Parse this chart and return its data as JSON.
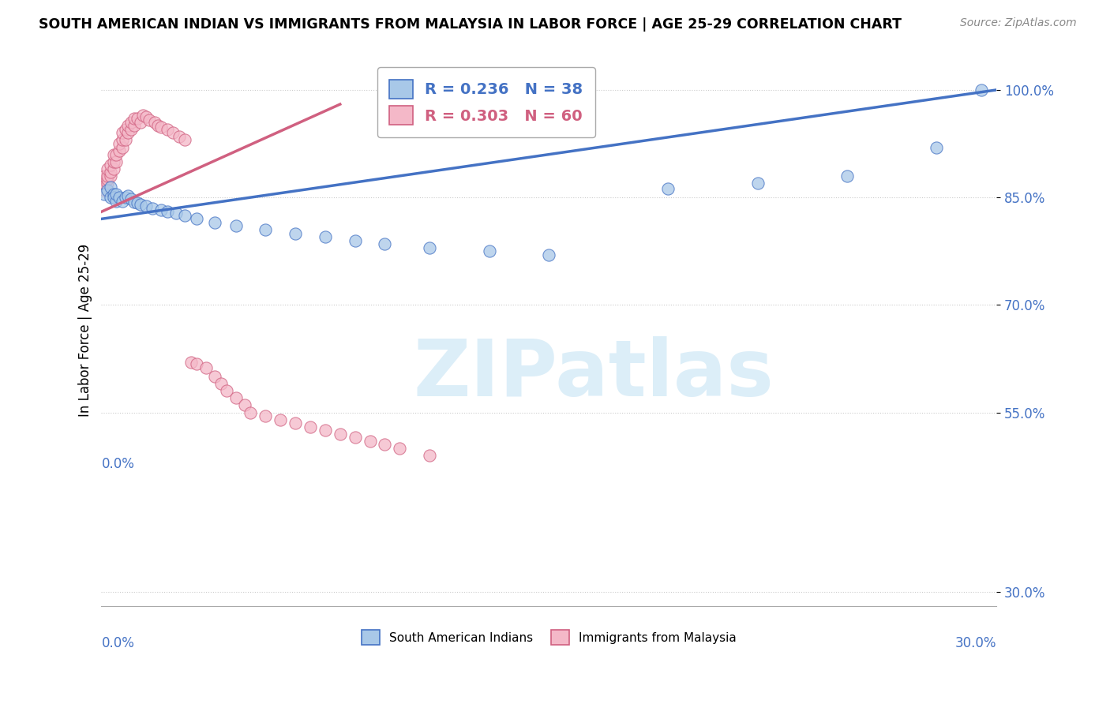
{
  "title": "SOUTH AMERICAN INDIAN VS IMMIGRANTS FROM MALAYSIA IN LABOR FORCE | AGE 25-29 CORRELATION CHART",
  "source": "Source: ZipAtlas.com",
  "ylabel": "In Labor Force | Age 25-29",
  "ytick_labels": [
    "100.0%",
    "85.0%",
    "70.0%",
    "55.0%",
    "30.0%"
  ],
  "ytick_values": [
    1.0,
    0.85,
    0.7,
    0.55,
    0.3
  ],
  "xlim": [
    0.0,
    0.3
  ],
  "ylim": [
    0.28,
    1.05
  ],
  "blue_R": 0.236,
  "blue_N": 38,
  "pink_R": 0.303,
  "pink_N": 60,
  "blue_color": "#a8c8e8",
  "blue_edge_color": "#4472c4",
  "pink_color": "#f4b8c8",
  "pink_edge_color": "#d06080",
  "blue_line_color": "#4472c4",
  "pink_line_color": "#d06080",
  "watermark_color": "#dceef8",
  "blue_scatter_x": [
    0.001,
    0.002,
    0.003,
    0.003,
    0.004,
    0.004,
    0.005,
    0.005,
    0.006,
    0.007,
    0.008,
    0.009,
    0.01,
    0.011,
    0.012,
    0.013,
    0.015,
    0.017,
    0.02,
    0.022,
    0.025,
    0.028,
    0.032,
    0.038,
    0.045,
    0.055,
    0.065,
    0.075,
    0.085,
    0.095,
    0.11,
    0.13,
    0.15,
    0.19,
    0.22,
    0.25,
    0.28,
    0.295
  ],
  "blue_scatter_y": [
    0.855,
    0.86,
    0.85,
    0.865,
    0.855,
    0.85,
    0.845,
    0.855,
    0.85,
    0.845,
    0.85,
    0.852,
    0.848,
    0.844,
    0.842,
    0.84,
    0.838,
    0.835,
    0.832,
    0.83,
    0.828,
    0.825,
    0.82,
    0.815,
    0.81,
    0.805,
    0.8,
    0.795,
    0.79,
    0.785,
    0.78,
    0.775,
    0.77,
    0.862,
    0.87,
    0.88,
    0.92,
    1.0
  ],
  "pink_scatter_x": [
    0.001,
    0.001,
    0.001,
    0.002,
    0.002,
    0.002,
    0.002,
    0.003,
    0.003,
    0.003,
    0.004,
    0.004,
    0.004,
    0.005,
    0.005,
    0.006,
    0.006,
    0.007,
    0.007,
    0.007,
    0.008,
    0.008,
    0.009,
    0.009,
    0.01,
    0.01,
    0.011,
    0.011,
    0.012,
    0.013,
    0.014,
    0.015,
    0.016,
    0.018,
    0.019,
    0.02,
    0.022,
    0.024,
    0.026,
    0.028,
    0.03,
    0.032,
    0.035,
    0.038,
    0.04,
    0.042,
    0.045,
    0.048,
    0.05,
    0.055,
    0.06,
    0.065,
    0.07,
    0.075,
    0.08,
    0.085,
    0.09,
    0.095,
    0.1,
    0.11
  ],
  "pink_scatter_y": [
    0.86,
    0.87,
    0.88,
    0.87,
    0.875,
    0.88,
    0.89,
    0.88,
    0.885,
    0.895,
    0.89,
    0.9,
    0.91,
    0.9,
    0.91,
    0.915,
    0.925,
    0.92,
    0.93,
    0.94,
    0.93,
    0.945,
    0.94,
    0.95,
    0.945,
    0.955,
    0.95,
    0.96,
    0.96,
    0.955,
    0.965,
    0.962,
    0.958,
    0.955,
    0.95,
    0.948,
    0.945,
    0.94,
    0.935,
    0.93,
    0.62,
    0.618,
    0.612,
    0.6,
    0.59,
    0.58,
    0.57,
    0.56,
    0.55,
    0.545,
    0.54,
    0.535,
    0.53,
    0.525,
    0.52,
    0.515,
    0.51,
    0.505,
    0.5,
    0.49
  ],
  "blue_trend_x": [
    0.0,
    0.3
  ],
  "blue_trend_y": [
    0.82,
    1.0
  ],
  "pink_trend_x": [
    0.0,
    0.08
  ],
  "pink_trend_y": [
    0.83,
    0.98
  ]
}
